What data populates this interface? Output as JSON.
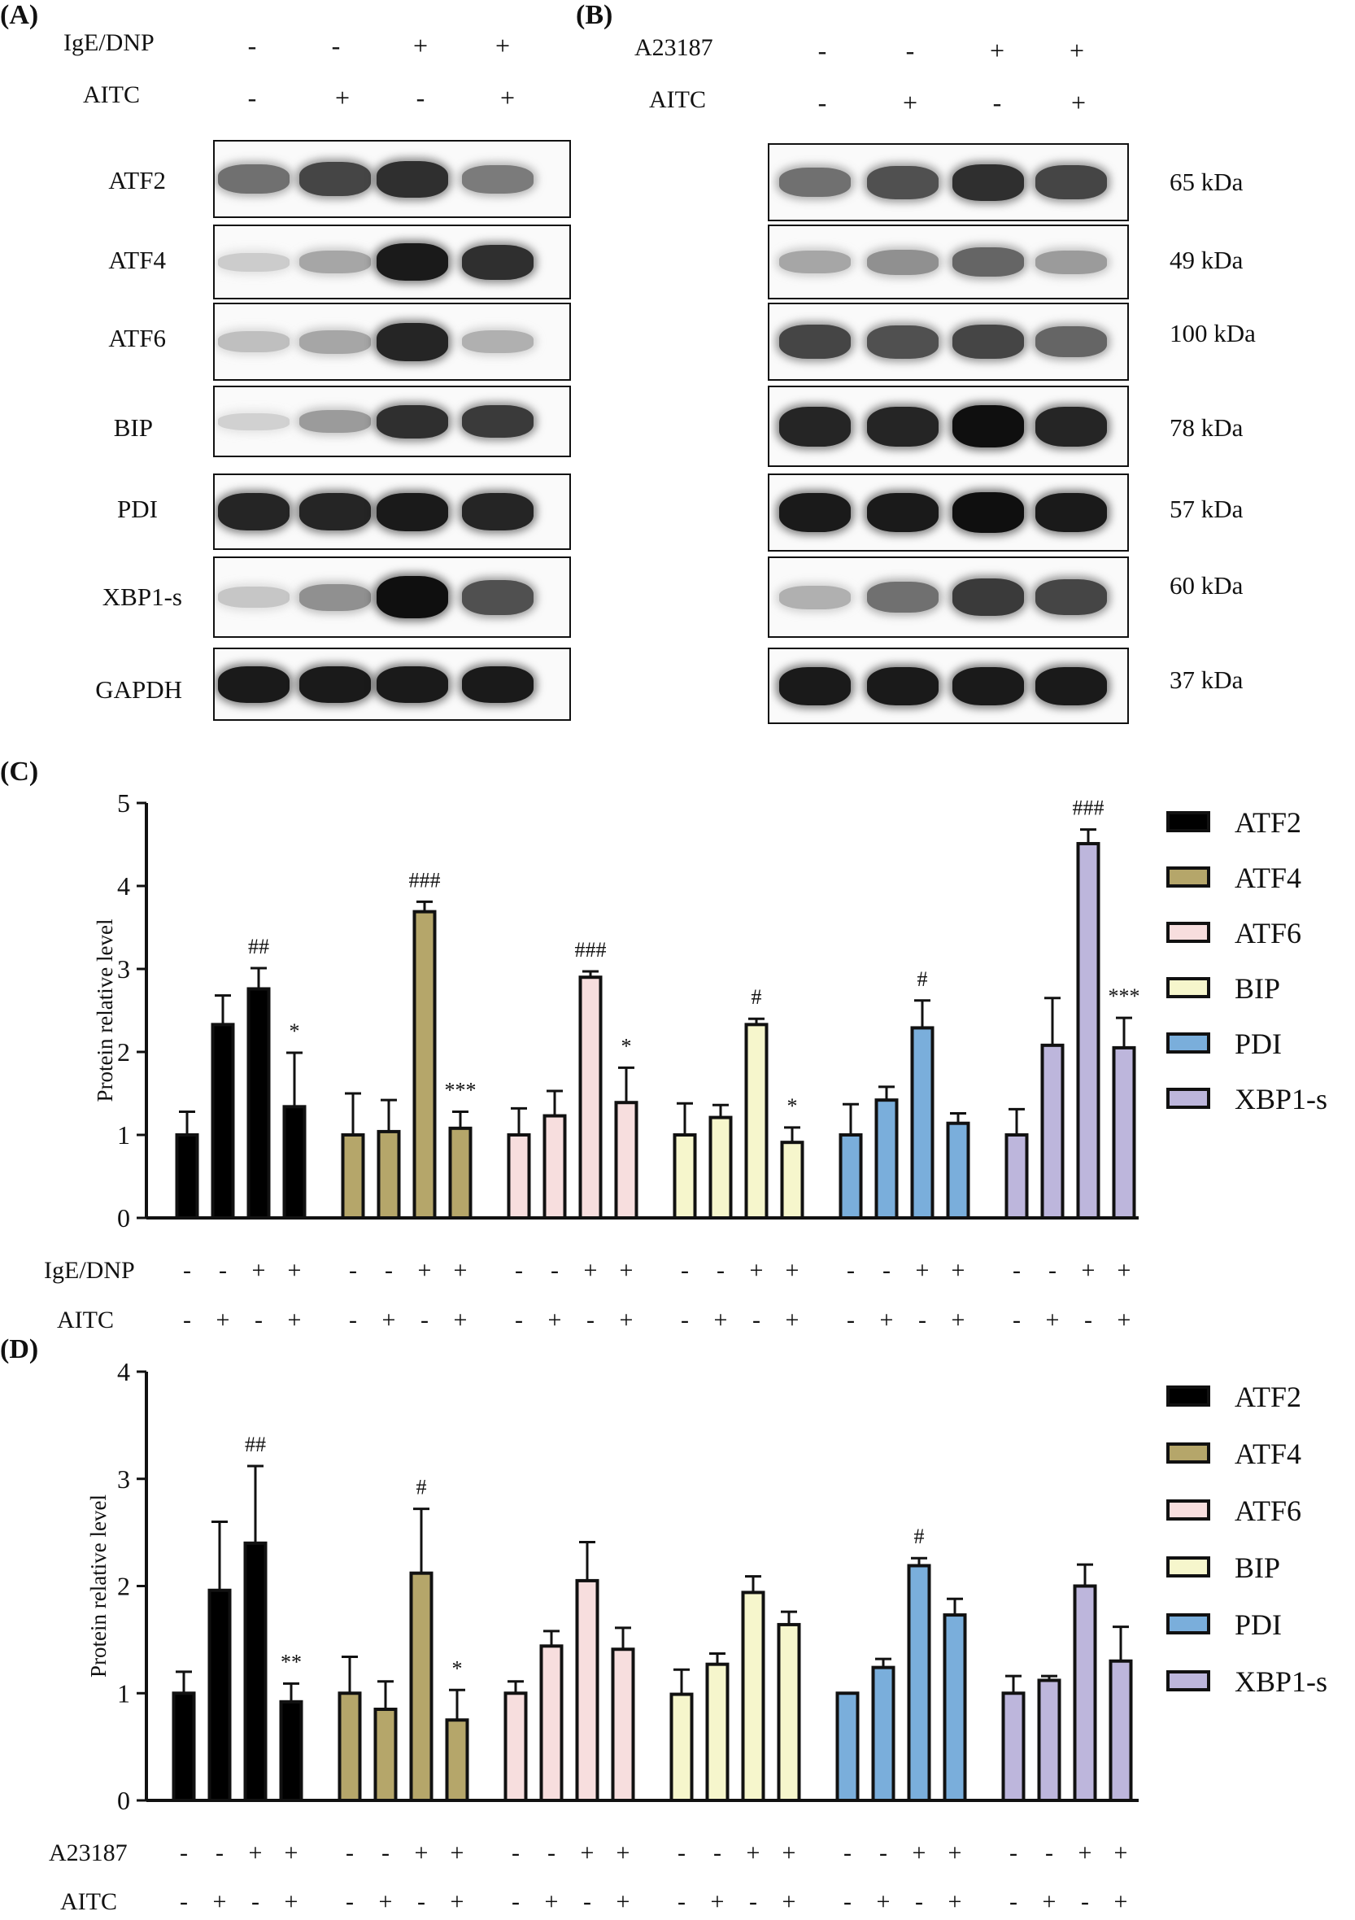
{
  "panelA": {
    "letter": "(A)",
    "cond1": {
      "label": "IgE/DNP",
      "signs": [
        "-",
        "-",
        "+",
        "+"
      ]
    },
    "cond2": {
      "label": "AITC",
      "signs": [
        "-",
        "+",
        "-",
        "+"
      ]
    },
    "proteins": [
      "ATF2",
      "ATF4",
      "ATF6",
      "BIP",
      "PDI",
      "XBP1-s",
      "GAPDH"
    ]
  },
  "panelB": {
    "letter": "(B)",
    "cond1": {
      "label": "A23187",
      "signs": [
        "-",
        "-",
        "+",
        "+"
      ]
    },
    "cond2": {
      "label": "AITC",
      "signs": [
        "-",
        "+",
        "-",
        "+"
      ]
    },
    "kda": [
      "65 kDa",
      "49 kDa",
      "100 kDa",
      "78 kDa",
      "57 kDa",
      "60 kDa",
      "37 kDa"
    ]
  },
  "blot_intensity": {
    "A": [
      [
        0.55,
        0.75,
        0.85,
        0.5
      ],
      [
        0.12,
        0.3,
        0.95,
        0.85
      ],
      [
        0.18,
        0.3,
        0.9,
        0.25
      ],
      [
        0.1,
        0.35,
        0.85,
        0.8
      ],
      [
        0.9,
        0.9,
        0.95,
        0.9
      ],
      [
        0.15,
        0.4,
        1.0,
        0.7
      ],
      [
        0.95,
        0.95,
        0.95,
        0.95
      ]
    ],
    "B": [
      [
        0.55,
        0.7,
        0.85,
        0.75
      ],
      [
        0.3,
        0.4,
        0.6,
        0.35
      ],
      [
        0.75,
        0.7,
        0.75,
        0.6
      ],
      [
        0.9,
        0.9,
        1.0,
        0.9
      ],
      [
        0.95,
        0.95,
        1.0,
        0.95
      ],
      [
        0.25,
        0.55,
        0.8,
        0.75
      ],
      [
        0.95,
        0.95,
        0.95,
        0.95
      ]
    ]
  },
  "colors": {
    "ATF2": "#000000",
    "ATF4": "#b5a66a",
    "ATF6": "#f7dede",
    "BIP": "#f6f6cc",
    "PDI": "#7aaedb",
    "XBP1-s": "#bdb6dc"
  },
  "chart_data": [
    {
      "panel": "(C)",
      "type": "bar",
      "ylabel": "Protein relative level",
      "ylim": [
        0,
        5
      ],
      "yticks": [
        "0",
        "1",
        "2",
        "3",
        "4",
        "5"
      ],
      "legend": [
        "ATF2",
        "ATF4",
        "ATF6",
        "BIP",
        "PDI",
        "XBP1-s"
      ],
      "row1": {
        "label": "IgE/DNP",
        "signs": [
          "-",
          "-",
          "+",
          "+"
        ]
      },
      "row2": {
        "label": "AITC",
        "signs": [
          "-",
          "+",
          "-",
          "+"
        ]
      },
      "series": [
        {
          "name": "ATF2",
          "values": [
            1.0,
            2.33,
            2.76,
            1.34
          ],
          "errors": [
            0.28,
            0.35,
            0.25,
            0.65
          ],
          "labels": [
            "",
            "",
            "##",
            "*"
          ]
        },
        {
          "name": "ATF4",
          "values": [
            1.0,
            1.04,
            3.69,
            1.08
          ],
          "errors": [
            0.5,
            0.38,
            0.12,
            0.2
          ],
          "labels": [
            "",
            "",
            "###",
            "***"
          ]
        },
        {
          "name": "ATF6",
          "values": [
            1.0,
            1.23,
            2.9,
            1.39
          ],
          "errors": [
            0.32,
            0.3,
            0.07,
            0.42
          ],
          "labels": [
            "",
            "",
            "###",
            "*"
          ]
        },
        {
          "name": "BIP",
          "values": [
            1.0,
            1.21,
            2.33,
            0.91
          ],
          "errors": [
            0.38,
            0.15,
            0.07,
            0.18
          ],
          "labels": [
            "",
            "",
            "#",
            "*"
          ]
        },
        {
          "name": "PDI",
          "values": [
            1.0,
            1.42,
            2.29,
            1.14
          ],
          "errors": [
            0.37,
            0.16,
            0.33,
            0.12
          ],
          "labels": [
            "",
            "",
            "#",
            ""
          ]
        },
        {
          "name": "XBP1-s",
          "values": [
            1.0,
            2.08,
            4.51,
            2.05
          ],
          "errors": [
            0.31,
            0.57,
            0.17,
            0.36
          ],
          "labels": [
            "",
            "",
            "###",
            "***"
          ]
        }
      ]
    },
    {
      "panel": "(D)",
      "type": "bar",
      "ylabel": "Protein relative level",
      "ylim": [
        0,
        4
      ],
      "yticks": [
        "0",
        "1",
        "2",
        "3",
        "4"
      ],
      "legend": [
        "ATF2",
        "ATF4",
        "ATF6",
        "BIP",
        "PDI",
        "XBP1-s"
      ],
      "row1": {
        "label": "A23187",
        "signs": [
          "-",
          "-",
          "+",
          "+"
        ]
      },
      "row2": {
        "label": "AITC",
        "signs": [
          "-",
          "+",
          "-",
          "+"
        ]
      },
      "series": [
        {
          "name": "ATF2",
          "values": [
            1.0,
            1.96,
            2.4,
            0.92
          ],
          "errors": [
            0.2,
            0.64,
            0.72,
            0.17
          ],
          "labels": [
            "",
            "",
            "##",
            "**"
          ]
        },
        {
          "name": "ATF4",
          "values": [
            1.0,
            0.85,
            2.12,
            0.75
          ],
          "errors": [
            0.34,
            0.26,
            0.6,
            0.28
          ],
          "labels": [
            "",
            "",
            "#",
            "*"
          ]
        },
        {
          "name": "ATF6",
          "values": [
            1.0,
            1.44,
            2.05,
            1.41
          ],
          "errors": [
            0.11,
            0.14,
            0.36,
            0.2
          ],
          "labels": [
            "",
            "",
            "",
            ""
          ]
        },
        {
          "name": "BIP",
          "values": [
            0.99,
            1.27,
            1.94,
            1.64
          ],
          "errors": [
            0.23,
            0.1,
            0.15,
            0.12
          ],
          "labels": [
            "",
            "",
            "",
            ""
          ]
        },
        {
          "name": "PDI",
          "values": [
            1.0,
            1.24,
            2.19,
            1.73
          ],
          "errors": [
            0.0,
            0.08,
            0.07,
            0.15
          ],
          "labels": [
            "",
            "",
            "#",
            ""
          ]
        },
        {
          "name": "XBP1-s",
          "values": [
            1.0,
            1.12,
            2.0,
            1.3
          ],
          "errors": [
            0.16,
            0.04,
            0.2,
            0.32
          ],
          "labels": [
            "",
            "",
            "",
            ""
          ]
        }
      ]
    }
  ]
}
